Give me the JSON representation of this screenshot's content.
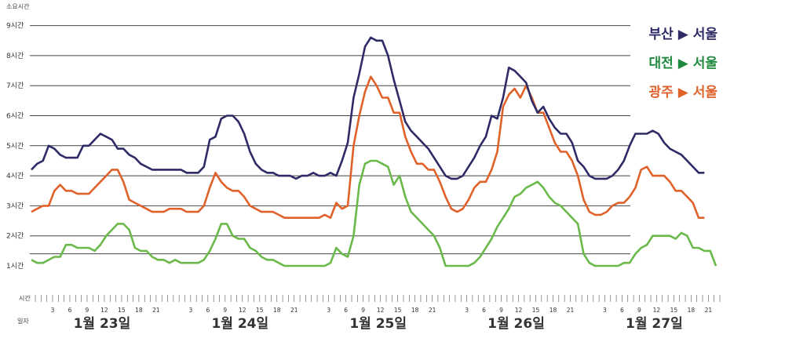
{
  "chart_data": {
    "type": "line",
    "ylabel": "소요시간",
    "y_ticks": [
      "1시간",
      "2시간",
      "3시간",
      "4시간",
      "5시간",
      "6시간",
      "7시간",
      "8시간",
      "9시간"
    ],
    "ylim": [
      0.4,
      9
    ],
    "x_row_label_hour": "시간",
    "x_row_label_day": "일자",
    "hour_ticks": [
      "3",
      "6",
      "9",
      "12",
      "15",
      "18",
      "21"
    ],
    "days": [
      "1월 23일",
      "1월 24일",
      "1월 25일",
      "1월 26일",
      "1월 27일"
    ],
    "hours_per_day": 24,
    "series": [
      {
        "name": "부산 ▶ 서울",
        "color": "#2e2b66",
        "values": [
          4.2,
          4.4,
          4.5,
          5.0,
          4.9,
          4.7,
          4.6,
          4.6,
          4.6,
          5.0,
          5.0,
          5.2,
          5.4,
          5.3,
          5.2,
          4.9,
          4.9,
          4.7,
          4.6,
          4.4,
          4.3,
          4.2,
          4.2,
          4.2,
          4.2,
          4.2,
          4.2,
          4.1,
          4.1,
          4.1,
          4.3,
          5.2,
          5.3,
          5.9,
          6.0,
          6.0,
          5.8,
          5.4,
          4.8,
          4.4,
          4.2,
          4.1,
          4.1,
          4.0,
          4.0,
          4.0,
          3.9,
          4.0,
          4.0,
          4.1,
          4.0,
          4.0,
          4.1,
          4.0,
          4.5,
          5.1,
          6.6,
          7.4,
          8.3,
          8.6,
          8.5,
          8.5,
          8.0,
          7.2,
          6.5,
          5.8,
          5.5,
          5.3,
          5.1,
          4.9,
          4.6,
          4.3,
          4.0,
          3.9,
          3.9,
          4.0,
          4.3,
          4.6,
          5.0,
          5.3,
          6.0,
          5.9,
          6.6,
          7.6,
          7.5,
          7.3,
          7.1,
          6.5,
          6.1,
          6.3,
          5.9,
          5.6,
          5.4,
          5.4,
          5.1,
          4.5,
          4.3,
          4.0,
          3.9,
          3.9,
          3.9,
          4.0,
          4.2,
          4.5,
          5.0,
          5.4,
          5.4,
          5.4,
          5.5,
          5.4,
          5.1,
          4.9,
          4.8,
          4.7,
          4.5,
          4.3,
          4.1,
          4.1
        ]
      },
      {
        "name": "대전 ▶ 서울",
        "color": "#6ab94a",
        "values": [
          1.2,
          1.1,
          1.1,
          1.2,
          1.3,
          1.3,
          1.7,
          1.7,
          1.6,
          1.6,
          1.6,
          1.5,
          1.7,
          2.0,
          2.2,
          2.4,
          2.4,
          2.2,
          1.6,
          1.5,
          1.5,
          1.3,
          1.2,
          1.2,
          1.1,
          1.2,
          1.1,
          1.1,
          1.1,
          1.1,
          1.2,
          1.5,
          1.9,
          2.4,
          2.4,
          2.0,
          1.9,
          1.9,
          1.6,
          1.5,
          1.3,
          1.2,
          1.2,
          1.1,
          1.0,
          1.0,
          1.0,
          1.0,
          1.0,
          1.0,
          1.0,
          1.0,
          1.1,
          1.6,
          1.4,
          1.3,
          2.0,
          3.7,
          4.4,
          4.5,
          4.5,
          4.4,
          4.3,
          3.7,
          4.0,
          3.3,
          2.8,
          2.6,
          2.4,
          2.2,
          2.0,
          1.6,
          1.0,
          1.0,
          1.0,
          1.0,
          1.0,
          1.1,
          1.3,
          1.6,
          1.9,
          2.3,
          2.6,
          2.9,
          3.3,
          3.4,
          3.6,
          3.7,
          3.8,
          3.6,
          3.3,
          3.1,
          3.0,
          2.8,
          2.6,
          2.4,
          1.4,
          1.1,
          1.0,
          1.0,
          1.0,
          1.0,
          1.0,
          1.1,
          1.1,
          1.4,
          1.6,
          1.7,
          2.0,
          2.0,
          2.0,
          2.0,
          1.9,
          2.1,
          2.0,
          1.6,
          1.6,
          1.5,
          1.5,
          1.0
        ]
      },
      {
        "name": "광주 ▶ 서울",
        "color": "#e0622a",
        "values": [
          2.8,
          2.9,
          3.0,
          3.0,
          3.5,
          3.7,
          3.5,
          3.5,
          3.4,
          3.4,
          3.4,
          3.6,
          3.8,
          4.0,
          4.2,
          4.2,
          3.8,
          3.2,
          3.1,
          3.0,
          2.9,
          2.8,
          2.8,
          2.8,
          2.9,
          2.9,
          2.9,
          2.8,
          2.8,
          2.8,
          3.0,
          3.6,
          4.1,
          3.8,
          3.6,
          3.5,
          3.5,
          3.3,
          3.0,
          2.9,
          2.8,
          2.8,
          2.8,
          2.7,
          2.6,
          2.6,
          2.6,
          2.6,
          2.6,
          2.6,
          2.6,
          2.7,
          2.6,
          3.1,
          2.9,
          3.0,
          5.0,
          6.0,
          6.8,
          7.3,
          7.0,
          6.6,
          6.6,
          6.1,
          6.1,
          5.3,
          4.8,
          4.4,
          4.4,
          4.2,
          4.2,
          3.8,
          3.3,
          2.9,
          2.8,
          2.9,
          3.2,
          3.6,
          3.8,
          3.8,
          4.2,
          4.8,
          6.3,
          6.7,
          6.9,
          6.6,
          7.0,
          6.6,
          6.1,
          6.1,
          5.6,
          5.1,
          4.8,
          4.8,
          4.5,
          4.0,
          3.2,
          2.8,
          2.7,
          2.7,
          2.8,
          3.0,
          3.1,
          3.1,
          3.3,
          3.6,
          4.2,
          4.3,
          4.0,
          4.0,
          4.0,
          3.8,
          3.5,
          3.5,
          3.3,
          3.1,
          2.6,
          2.6
        ]
      }
    ]
  }
}
